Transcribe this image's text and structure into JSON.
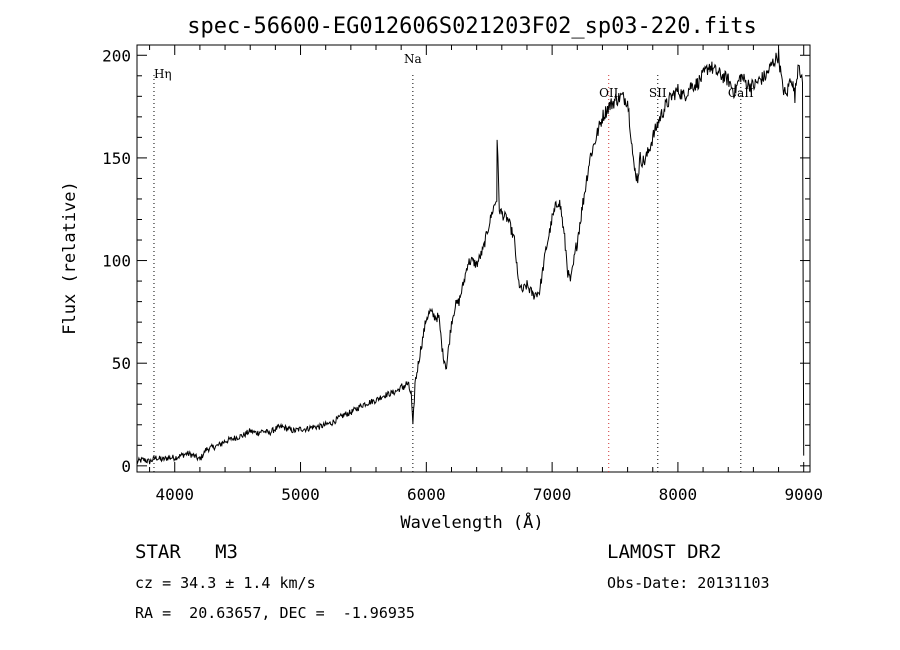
{
  "chart_data": {
    "type": "line",
    "title": "spec-56600-EG012606S021203F02_sp03-220.fits",
    "xlabel": "Wavelength (Å)",
    "ylabel": "Flux (relative)",
    "xlim": [
      3700,
      9050
    ],
    "ylim": [
      -3,
      205
    ],
    "x_ticks": [
      4000,
      5000,
      6000,
      7000,
      8000,
      9000
    ],
    "y_ticks": [
      0,
      50,
      100,
      150,
      200
    ],
    "grid": false,
    "line_color": "#000000",
    "series": [
      {
        "x": [
          3700,
          3750,
          3800,
          3850,
          3900,
          3950,
          4000,
          4050,
          4100,
          4150,
          4200,
          4250,
          4300,
          4350,
          4400,
          4450,
          4500,
          4550,
          4600,
          4650,
          4700,
          4750,
          4800,
          4850,
          4900,
          4950,
          5000,
          5050,
          5100,
          5150,
          5200,
          5250,
          5300,
          5350,
          5400,
          5450,
          5500,
          5550,
          5600,
          5650,
          5700,
          5750,
          5800,
          5850,
          5880,
          5893,
          5910,
          5950,
          5980,
          6000,
          6030,
          6060,
          6100,
          6130,
          6160,
          6200,
          6230,
          6260,
          6300,
          6330,
          6360,
          6400,
          6450,
          6500,
          6530,
          6560,
          6563,
          6580,
          6610,
          6650,
          6700,
          6730,
          6760,
          6800,
          6850,
          6900,
          6950,
          7000,
          7050,
          7070,
          7100,
          7130,
          7150,
          7200,
          7250,
          7300,
          7350,
          7400,
          7450,
          7500,
          7550,
          7600,
          7630,
          7650,
          7680,
          7700,
          7730,
          7760,
          7800,
          7830,
          7860,
          7900,
          7950,
          8000,
          8050,
          8100,
          8150,
          8200,
          8250,
          8300,
          8350,
          8400,
          8450,
          8500,
          8550,
          8600,
          8650,
          8700,
          8750,
          8800,
          8830,
          8860,
          8900,
          8930,
          8960,
          8990,
          9000
        ],
        "y": [
          2,
          3,
          2,
          4,
          3,
          4,
          4,
          5,
          6,
          5,
          3,
          8,
          9,
          10,
          12,
          13,
          14,
          15,
          17,
          16,
          17,
          16,
          18,
          19,
          18,
          17,
          18,
          18,
          19,
          19,
          20,
          21,
          23,
          25,
          26,
          28,
          30,
          31,
          32,
          34,
          35,
          36,
          38,
          40,
          35,
          18,
          40,
          55,
          65,
          72,
          75,
          73,
          72,
          55,
          48,
          70,
          78,
          80,
          90,
          99,
          100,
          98,
          105,
          118,
          125,
          130,
          160,
          125,
          122,
          120,
          110,
          90,
          85,
          88,
          83,
          85,
          105,
          120,
          130,
          125,
          110,
          92,
          90,
          110,
          130,
          150,
          160,
          170,
          175,
          178,
          180,
          178,
          160,
          145,
          140,
          150,
          148,
          152,
          160,
          165,
          170,
          175,
          180,
          183,
          180,
          185,
          186,
          190,
          195,
          192,
          190,
          188,
          182,
          190,
          186,
          185,
          188,
          190,
          196,
          200,
          185,
          180,
          190,
          180,
          198,
          185,
          5
        ]
      }
    ],
    "lines": [
      {
        "label": "Hη",
        "x": 3835,
        "color": "#000000"
      },
      {
        "label": "Na",
        "x": 5893,
        "color": "#000000"
      },
      {
        "label": "OII",
        "x": 7450,
        "color": "#d03030"
      },
      {
        "label": "SII",
        "x": 7840,
        "color": "#000000"
      },
      {
        "label": "CaII",
        "x": 8500,
        "color": "#000000"
      }
    ]
  },
  "info": {
    "object_line": "STAR   M3",
    "cz_line": "cz = 34.3 ± 1.4 km/s",
    "coord_line": "RA =  20.63657, DEC =  -1.96935",
    "survey_line": "LAMOST DR2",
    "date_line": "Obs-Date: 20131103"
  }
}
